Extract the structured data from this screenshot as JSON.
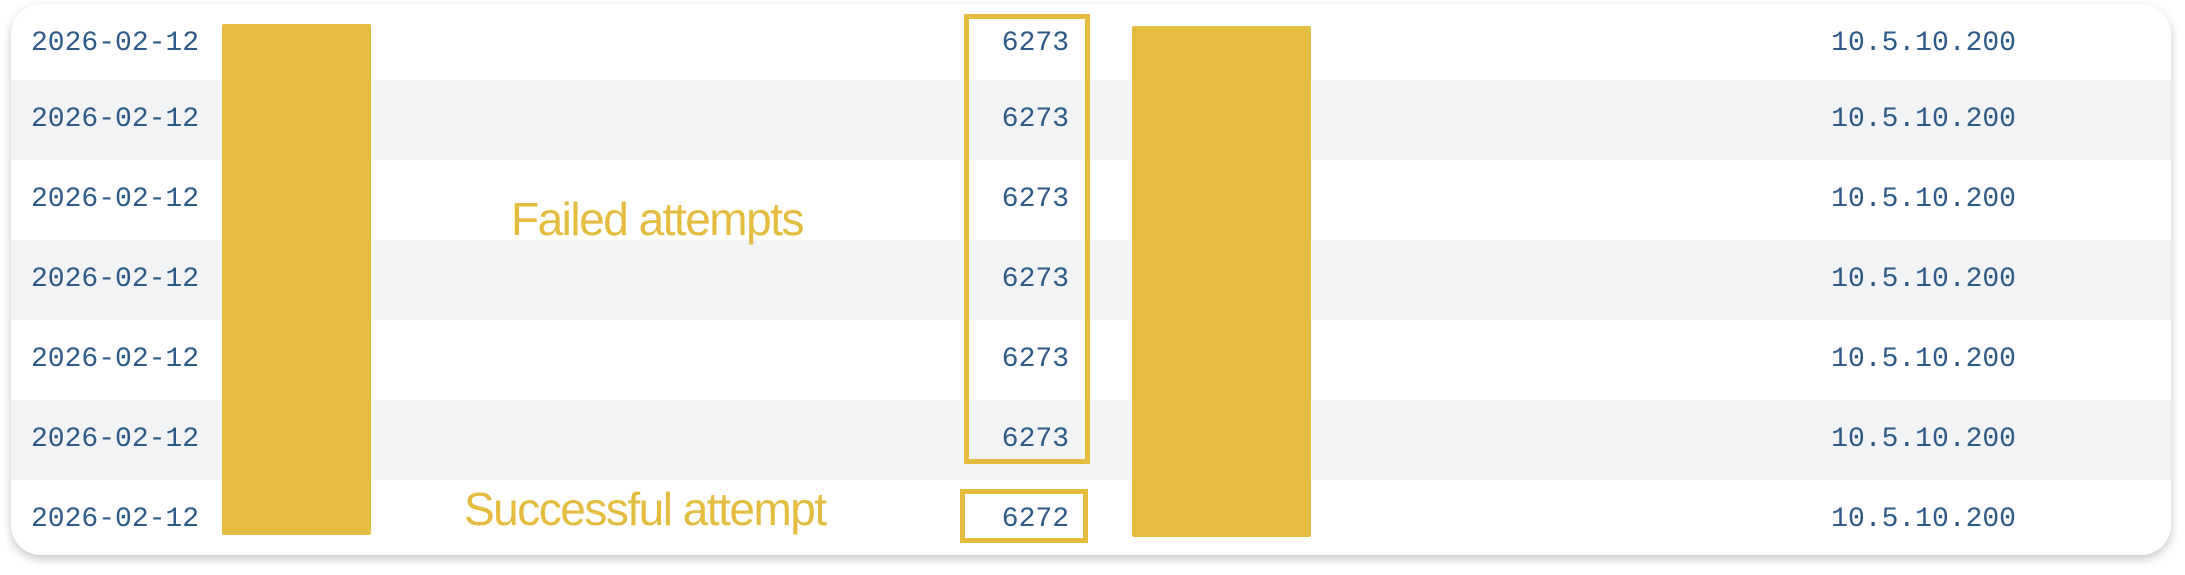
{
  "table": {
    "rows": [
      {
        "date": "2026-02-12",
        "port": "6273",
        "ip": "10.5.10.200"
      },
      {
        "date": "2026-02-12",
        "port": "6273",
        "ip": "10.5.10.200"
      },
      {
        "date": "2026-02-12",
        "port": "6273",
        "ip": "10.5.10.200"
      },
      {
        "date": "2026-02-12",
        "port": "6273",
        "ip": "10.5.10.200"
      },
      {
        "date": "2026-02-12",
        "port": "6273",
        "ip": "10.5.10.200"
      },
      {
        "date": "2026-02-12",
        "port": "6273",
        "ip": "10.5.10.200"
      },
      {
        "date": "2026-02-12",
        "port": "6272",
        "ip": "10.5.10.200"
      }
    ]
  },
  "annotations": {
    "failed_label": "Failed attempts",
    "success_label": "Successful attempt"
  },
  "colors": {
    "highlight": "#e3bc40",
    "text": "#2e5a8a",
    "row_alt": "#f2f3f5"
  }
}
